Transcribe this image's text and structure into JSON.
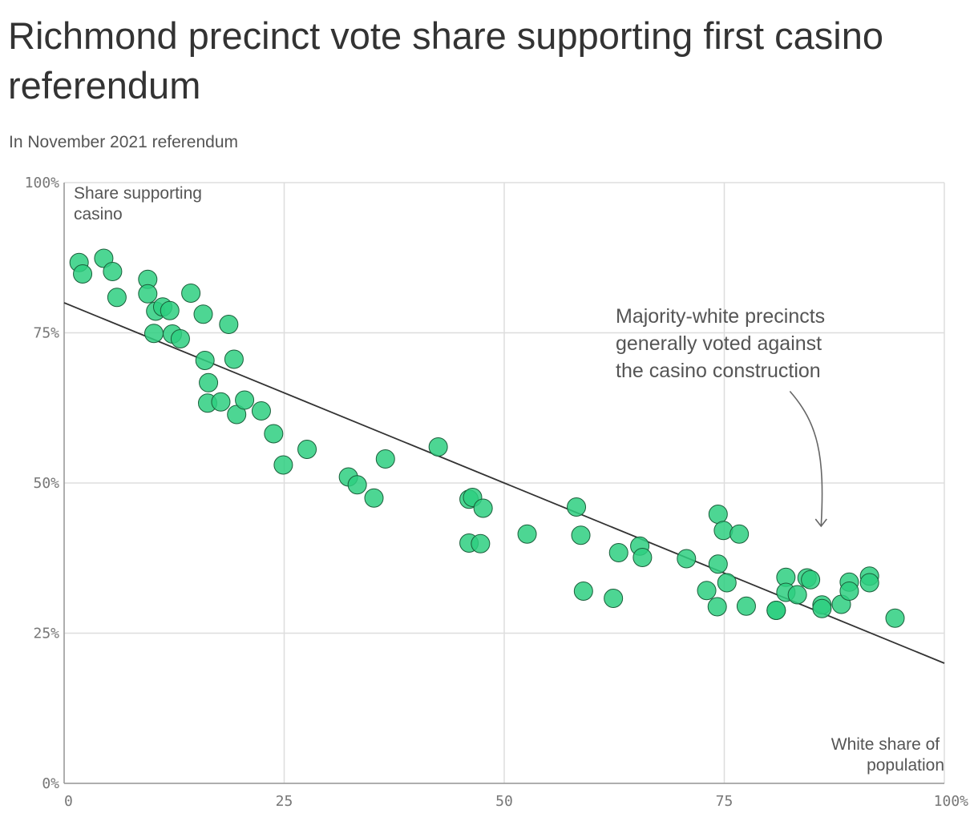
{
  "title": "Richmond precinct vote share supporting first casino referendum",
  "subtitle": "In November 2021 referendum",
  "colors": {
    "point_fill": "#2ecf80",
    "point_stroke": "#1a5e3a",
    "trend": "#333333",
    "grid": "#dddddd"
  },
  "chart_data": {
    "type": "scatter",
    "x_label_lines": [
      "White share of",
      "population"
    ],
    "y_label_lines": [
      "Share supporting",
      "casino"
    ],
    "xlim": [
      0,
      100
    ],
    "ylim": [
      0,
      100
    ],
    "x_ticks": [
      {
        "value": 0,
        "label": "0"
      },
      {
        "value": 25,
        "label": "25"
      },
      {
        "value": 50,
        "label": "50"
      },
      {
        "value": 75,
        "label": "75"
      },
      {
        "value": 100,
        "label": "100%"
      }
    ],
    "y_ticks": [
      {
        "value": 0,
        "label": "0%"
      },
      {
        "value": 25,
        "label": "25%"
      },
      {
        "value": 50,
        "label": "50%"
      },
      {
        "value": 75,
        "label": "75%"
      },
      {
        "value": 100,
        "label": "100%"
      }
    ],
    "grid": true,
    "trend_line": {
      "x": [
        0,
        100
      ],
      "y": [
        80,
        20
      ]
    },
    "annotation": {
      "lines": [
        "Majority-white precincts",
        "generally voted against",
        "the casino construction"
      ],
      "arrow_from": [
        82,
        65
      ],
      "arrow_to": [
        86,
        42
      ]
    },
    "points": [
      [
        1.7,
        86.7
      ],
      [
        2.1,
        84.8
      ],
      [
        4.5,
        87.4
      ],
      [
        5.5,
        85.2
      ],
      [
        6.0,
        80.9
      ],
      [
        9.5,
        83.9
      ],
      [
        9.5,
        81.5
      ],
      [
        10.4,
        78.6
      ],
      [
        10.2,
        74.9
      ],
      [
        11.2,
        79.3
      ],
      [
        12.0,
        78.7
      ],
      [
        12.3,
        74.8
      ],
      [
        13.2,
        74.0
      ],
      [
        14.4,
        81.6
      ],
      [
        15.8,
        78.1
      ],
      [
        16.0,
        70.4
      ],
      [
        18.7,
        76.4
      ],
      [
        19.3,
        70.6
      ],
      [
        16.4,
        66.7
      ],
      [
        16.3,
        63.3
      ],
      [
        17.8,
        63.5
      ],
      [
        19.6,
        61.4
      ],
      [
        20.5,
        63.8
      ],
      [
        22.4,
        62.0
      ],
      [
        23.8,
        58.2
      ],
      [
        24.9,
        53.0
      ],
      [
        27.6,
        55.6
      ],
      [
        32.3,
        51.0
      ],
      [
        33.3,
        49.7
      ],
      [
        35.2,
        47.5
      ],
      [
        36.5,
        54.0
      ],
      [
        42.5,
        56.0
      ],
      [
        46.0,
        47.3
      ],
      [
        46.4,
        47.6
      ],
      [
        47.6,
        45.8
      ],
      [
        46.0,
        40.0
      ],
      [
        47.3,
        39.9
      ],
      [
        52.6,
        41.5
      ],
      [
        58.2,
        46.0
      ],
      [
        58.7,
        41.3
      ],
      [
        59.0,
        32.0
      ],
      [
        62.4,
        30.8
      ],
      [
        63.0,
        38.4
      ],
      [
        65.4,
        39.5
      ],
      [
        65.7,
        37.6
      ],
      [
        70.7,
        37.4
      ],
      [
        73.0,
        32.1
      ],
      [
        74.2,
        29.4
      ],
      [
        74.3,
        36.5
      ],
      [
        74.3,
        44.8
      ],
      [
        74.9,
        42.1
      ],
      [
        75.3,
        33.4
      ],
      [
        76.7,
        41.5
      ],
      [
        77.5,
        29.5
      ],
      [
        80.9,
        28.8
      ],
      [
        80.9,
        28.8
      ],
      [
        82.0,
        34.3
      ],
      [
        82.0,
        31.8
      ],
      [
        83.3,
        31.4
      ],
      [
        84.4,
        34.2
      ],
      [
        84.8,
        33.9
      ],
      [
        86.1,
        29.7
      ],
      [
        86.1,
        29.1
      ],
      [
        88.3,
        29.8
      ],
      [
        89.2,
        33.5
      ],
      [
        89.2,
        32.0
      ],
      [
        91.5,
        34.5
      ],
      [
        91.5,
        33.4
      ],
      [
        94.4,
        27.5
      ]
    ]
  }
}
